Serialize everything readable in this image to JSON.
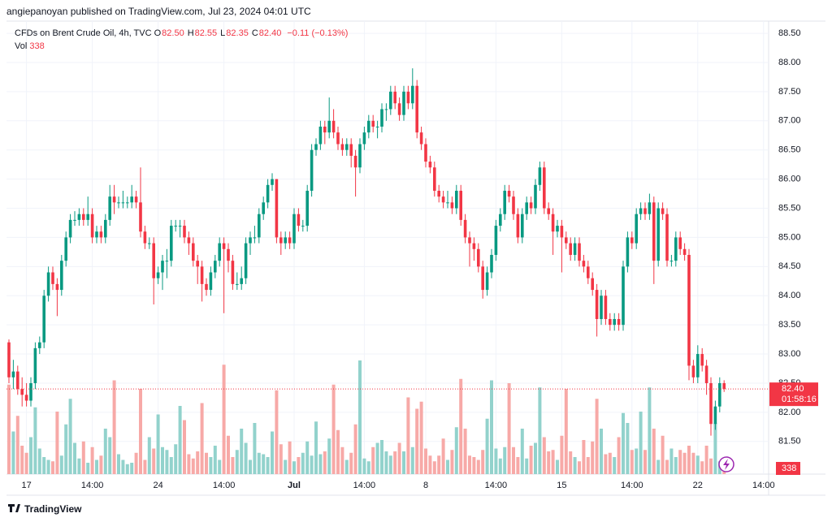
{
  "chart_data": {
    "type": "candlestick",
    "header": "angiepanoyan published on TradingView.com, Jul 23, 2024 04:01 UTC",
    "legend": {
      "symbol": "CFDs on Brent Crude Oil, 4h, TVC",
      "fields": [
        "O",
        "H",
        "L",
        "C"
      ],
      "value_labels": [
        "82.50",
        "82.55",
        "82.35",
        "82.40"
      ],
      "change": "−0.11 (−0.13%)",
      "volume_name": "Vol",
      "volume_label": "338"
    },
    "last_price_label": "82.40",
    "countdown": "01:58:16",
    "last_volume_label": "338",
    "brand": "TradingView",
    "up_color": "#089981",
    "down_color": "#f23645",
    "volume_up_color": "#92d2cc",
    "volume_down_color": "#f7a9a7",
    "grid": true,
    "ylim": [
      80.94,
      88.71
    ],
    "yticks": [
      {
        "value": 88.5,
        "label": "88.50"
      },
      {
        "value": 88,
        "label": "88.00"
      },
      {
        "value": 87.5,
        "label": "87.50"
      },
      {
        "value": 87,
        "label": "87.00"
      },
      {
        "value": 86.5,
        "label": "86.50"
      },
      {
        "value": 86,
        "label": "86.00"
      },
      {
        "value": 85.5,
        "label": "85.50"
      },
      {
        "value": 85,
        "label": "85.00"
      },
      {
        "value": 84.5,
        "label": "84.50"
      },
      {
        "value": 84,
        "label": "84.00"
      },
      {
        "value": 83.5,
        "label": "83.50"
      },
      {
        "value": 83,
        "label": "83.00"
      },
      {
        "value": 82.5,
        "label": "82.50"
      },
      {
        "value": 82,
        "label": "82.00"
      },
      {
        "value": 81.5,
        "label": "81.50"
      }
    ],
    "xticks": [
      {
        "value": 4,
        "label": "17"
      },
      {
        "value": 19,
        "label": "14:00"
      },
      {
        "value": 34,
        "label": "24"
      },
      {
        "value": 49,
        "label": "14:00"
      },
      {
        "value": 65,
        "label": "Jul"
      },
      {
        "value": 81,
        "label": "14:00"
      },
      {
        "value": 95,
        "label": "8"
      },
      {
        "value": 111,
        "label": "14:00"
      },
      {
        "value": 126,
        "label": "15"
      },
      {
        "value": 142,
        "label": "14:00"
      },
      {
        "value": 157,
        "label": "22"
      },
      {
        "value": 172,
        "label": "14:00"
      }
    ],
    "volume_lim": [
      0,
      8000
    ],
    "candles": [
      [
        83.2,
        83.25,
        82.5,
        82.6
      ],
      [
        82.6,
        82.9,
        82.4,
        82.7
      ],
      [
        82.7,
        82.8,
        82.3,
        82.4
      ],
      [
        82.4,
        82.6,
        82.1,
        82.3
      ],
      [
        82.3,
        82.5,
        82.1,
        82.2
      ],
      [
        82.2,
        82.6,
        82.1,
        82.5
      ],
      [
        82.5,
        83.2,
        82.4,
        83.1
      ],
      [
        83.1,
        83.3,
        83.0,
        83.2
      ],
      [
        83.2,
        84.1,
        83.1,
        84.0
      ],
      [
        84.0,
        84.5,
        83.9,
        84.4
      ],
      [
        84.4,
        84.5,
        84.1,
        84.2
      ],
      [
        84.2,
        84.3,
        83.65,
        84.1
      ],
      [
        84.1,
        84.7,
        84.0,
        84.6
      ],
      [
        84.6,
        85.1,
        84.5,
        85.0
      ],
      [
        85.0,
        85.4,
        84.9,
        85.3
      ],
      [
        85.3,
        85.45,
        85.2,
        85.3
      ],
      [
        85.3,
        85.5,
        85.2,
        85.4
      ],
      [
        85.4,
        85.5,
        85.2,
        85.3
      ],
      [
        85.3,
        85.7,
        85.2,
        85.4
      ],
      [
        85.4,
        85.5,
        84.9,
        85.0
      ],
      [
        85.0,
        85.2,
        84.9,
        85.1
      ],
      [
        85.1,
        85.2,
        84.9,
        85.0
      ],
      [
        85.0,
        85.4,
        84.9,
        85.3
      ],
      [
        85.3,
        85.9,
        85.2,
        85.7
      ],
      [
        85.7,
        85.9,
        85.4,
        85.6
      ],
      [
        85.6,
        85.7,
        85.5,
        85.6
      ],
      [
        85.6,
        85.8,
        85.5,
        85.6
      ],
      [
        85.6,
        85.7,
        85.5,
        85.6
      ],
      [
        85.6,
        85.9,
        85.5,
        85.7
      ],
      [
        85.7,
        85.8,
        85.5,
        85.6
      ],
      [
        85.6,
        86.2,
        85.0,
        85.1
      ],
      [
        85.1,
        85.2,
        84.8,
        84.9
      ],
      [
        84.9,
        85.0,
        84.8,
        84.9
      ],
      [
        84.9,
        85.0,
        83.85,
        84.3
      ],
      [
        84.3,
        84.5,
        84.2,
        84.4
      ],
      [
        84.4,
        84.7,
        84.1,
        84.6
      ],
      [
        84.6,
        84.8,
        84.3,
        84.6
      ],
      [
        84.6,
        85.3,
        84.5,
        85.2
      ],
      [
        85.2,
        85.3,
        85.1,
        85.2
      ],
      [
        85.2,
        85.3,
        85.0,
        85.2
      ],
      [
        85.2,
        85.3,
        84.9,
        85.0
      ],
      [
        85.0,
        85.1,
        84.7,
        84.9
      ],
      [
        84.9,
        85.0,
        84.5,
        84.6
      ],
      [
        84.6,
        84.7,
        84.2,
        84.5
      ],
      [
        84.5,
        84.6,
        83.9,
        84.2
      ],
      [
        84.2,
        84.3,
        84.0,
        84.1
      ],
      [
        84.1,
        84.5,
        84.0,
        84.4
      ],
      [
        84.4,
        84.7,
        84.3,
        84.6
      ],
      [
        84.6,
        85.0,
        84.5,
        84.9
      ],
      [
        84.9,
        85.0,
        83.7,
        84.8
      ],
      [
        84.8,
        84.9,
        84.4,
        84.6
      ],
      [
        84.6,
        84.7,
        84.1,
        84.2
      ],
      [
        84.2,
        84.4,
        84.1,
        84.2
      ],
      [
        84.2,
        84.5,
        84.1,
        84.3
      ],
      [
        84.3,
        85.0,
        84.2,
        84.9
      ],
      [
        84.9,
        85.1,
        84.7,
        85.0
      ],
      [
        85.0,
        85.2,
        84.9,
        85.0
      ],
      [
        85.0,
        85.5,
        84.9,
        85.4
      ],
      [
        85.4,
        85.7,
        85.3,
        85.6
      ],
      [
        85.6,
        86.0,
        85.5,
        85.9
      ],
      [
        85.9,
        86.1,
        85.8,
        86.0
      ],
      [
        86.0,
        86.0,
        84.9,
        85.0
      ],
      [
        85.0,
        85.1,
        84.7,
        84.9
      ],
      [
        84.9,
        85.1,
        84.8,
        85.0
      ],
      [
        85.0,
        85.1,
        84.8,
        84.9
      ],
      [
        84.9,
        85.5,
        84.8,
        85.4
      ],
      [
        85.4,
        85.5,
        85.1,
        85.2
      ],
      [
        85.2,
        85.3,
        85.1,
        85.2
      ],
      [
        85.2,
        85.9,
        85.1,
        85.8
      ],
      [
        85.8,
        86.6,
        85.7,
        86.5
      ],
      [
        86.5,
        86.7,
        86.4,
        86.6
      ],
      [
        86.6,
        87.0,
        86.5,
        86.9
      ],
      [
        86.9,
        87.0,
        86.6,
        86.8
      ],
      [
        86.8,
        87.4,
        86.7,
        87.0
      ],
      [
        87.0,
        87.2,
        86.7,
        86.8
      ],
      [
        86.8,
        86.9,
        86.5,
        86.6
      ],
      [
        86.6,
        86.7,
        86.4,
        86.5
      ],
      [
        86.5,
        86.7,
        86.4,
        86.6
      ],
      [
        86.6,
        86.7,
        86.2,
        86.4
      ],
      [
        86.4,
        86.5,
        85.7,
        86.2
      ],
      [
        86.2,
        86.7,
        86.1,
        86.6
      ],
      [
        86.6,
        86.9,
        86.5,
        86.8
      ],
      [
        86.8,
        87.1,
        86.7,
        87.0
      ],
      [
        87.0,
        87.1,
        86.8,
        86.9
      ],
      [
        86.9,
        87.0,
        86.7,
        86.9
      ],
      [
        86.9,
        87.3,
        86.8,
        87.2
      ],
      [
        87.2,
        87.3,
        87.0,
        87.2
      ],
      [
        87.2,
        87.6,
        87.1,
        87.5
      ],
      [
        87.5,
        87.6,
        87.2,
        87.3
      ],
      [
        87.3,
        87.4,
        87.0,
        87.1
      ],
      [
        87.1,
        87.6,
        87.0,
        87.5
      ],
      [
        87.5,
        87.6,
        87.2,
        87.3
      ],
      [
        87.3,
        87.9,
        87.2,
        87.6
      ],
      [
        87.6,
        87.7,
        86.7,
        86.8
      ],
      [
        86.8,
        86.9,
        86.5,
        86.6
      ],
      [
        86.6,
        86.7,
        86.2,
        86.3
      ],
      [
        86.3,
        86.4,
        86.1,
        86.2
      ],
      [
        86.2,
        86.3,
        85.7,
        85.8
      ],
      [
        85.8,
        85.9,
        85.6,
        85.7
      ],
      [
        85.7,
        85.8,
        85.5,
        85.6
      ],
      [
        85.6,
        85.8,
        85.5,
        85.6
      ],
      [
        85.6,
        85.7,
        85.4,
        85.5
      ],
      [
        85.5,
        85.9,
        85.4,
        85.8
      ],
      [
        85.8,
        85.9,
        85.2,
        85.3
      ],
      [
        85.3,
        85.4,
        84.9,
        85.0
      ],
      [
        85.0,
        85.1,
        84.5,
        84.9
      ],
      [
        84.9,
        85.0,
        84.6,
        84.8
      ],
      [
        84.8,
        84.9,
        84.4,
        84.5
      ],
      [
        84.5,
        84.6,
        83.95,
        84.1
      ],
      [
        84.1,
        84.5,
        84.0,
        84.4
      ],
      [
        84.4,
        84.8,
        84.3,
        84.7
      ],
      [
        84.7,
        85.3,
        84.6,
        85.2
      ],
      [
        85.2,
        85.5,
        85.1,
        85.4
      ],
      [
        85.4,
        85.9,
        85.3,
        85.8
      ],
      [
        85.8,
        85.9,
        85.6,
        85.7
      ],
      [
        85.7,
        85.8,
        85.3,
        85.4
      ],
      [
        85.4,
        85.5,
        84.9,
        85.0
      ],
      [
        85.0,
        85.5,
        84.9,
        85.4
      ],
      [
        85.4,
        85.7,
        85.3,
        85.6
      ],
      [
        85.6,
        85.7,
        85.4,
        85.5
      ],
      [
        85.5,
        86.0,
        85.4,
        85.9
      ],
      [
        85.9,
        86.3,
        85.8,
        86.2
      ],
      [
        86.2,
        86.3,
        85.4,
        85.5
      ],
      [
        85.5,
        85.6,
        85.3,
        85.4
      ],
      [
        85.4,
        85.5,
        84.7,
        85.1
      ],
      [
        85.1,
        85.3,
        85.0,
        85.2
      ],
      [
        85.2,
        85.3,
        84.4,
        85.0
      ],
      [
        85.0,
        85.1,
        84.8,
        84.9
      ],
      [
        84.9,
        85.0,
        84.6,
        84.7
      ],
      [
        84.7,
        85.0,
        84.6,
        84.9
      ],
      [
        84.9,
        85.0,
        84.5,
        84.6
      ],
      [
        84.6,
        84.7,
        84.4,
        84.5
      ],
      [
        84.5,
        84.6,
        84.2,
        84.3
      ],
      [
        84.3,
        84.4,
        84.0,
        84.1
      ],
      [
        84.1,
        84.2,
        83.3,
        83.6
      ],
      [
        83.6,
        84.1,
        83.5,
        84.0
      ],
      [
        84.0,
        84.1,
        83.5,
        83.6
      ],
      [
        83.6,
        83.7,
        83.4,
        83.5
      ],
      [
        83.5,
        83.7,
        83.4,
        83.6
      ],
      [
        83.6,
        83.7,
        83.4,
        83.5
      ],
      [
        83.5,
        84.6,
        83.4,
        84.5
      ],
      [
        84.5,
        85.1,
        84.4,
        85.0
      ],
      [
        85.0,
        85.1,
        84.8,
        84.9
      ],
      [
        84.9,
        85.5,
        84.8,
        85.4
      ],
      [
        85.4,
        85.6,
        85.3,
        85.5
      ],
      [
        85.5,
        85.6,
        85.3,
        85.4
      ],
      [
        85.4,
        85.75,
        85.3,
        85.6
      ],
      [
        85.6,
        85.7,
        84.2,
        84.6
      ],
      [
        84.6,
        85.6,
        84.5,
        85.5
      ],
      [
        85.5,
        85.6,
        85.3,
        85.4
      ],
      [
        85.4,
        85.5,
        84.5,
        84.6
      ],
      [
        84.6,
        84.7,
        84.5,
        84.6
      ],
      [
        84.6,
        85.1,
        84.5,
        85.0
      ],
      [
        85.0,
        85.1,
        84.7,
        84.8
      ],
      [
        84.8,
        84.9,
        84.6,
        84.7
      ],
      [
        84.7,
        84.8,
        82.55,
        82.8
      ],
      [
        82.8,
        82.9,
        82.5,
        82.6
      ],
      [
        82.6,
        83.15,
        82.5,
        83.0
      ],
      [
        83.0,
        83.1,
        82.7,
        82.8
      ],
      [
        82.8,
        82.9,
        82.3,
        82.5
      ],
      [
        82.5,
        82.6,
        81.6,
        81.8
      ],
      [
        81.8,
        82.2,
        81.7,
        82.1
      ],
      [
        82.1,
        82.6,
        82.0,
        82.5
      ],
      [
        82.5,
        82.55,
        82.35,
        82.4
      ]
    ],
    "volumes": [
      6300,
      3000,
      4100,
      2000,
      1500,
      2600,
      4700,
      1800,
      1200,
      1000,
      900,
      4400,
      1300,
      3500,
      5300,
      2200,
      1100,
      2300,
      800,
      1900,
      1000,
      1300,
      3200,
      2600,
      6600,
      1400,
      1000,
      700,
      800,
      1500,
      6000,
      1000,
      2600,
      1800,
      4200,
      1900,
      1700,
      1200,
      2100,
      4800,
      3800,
      1400,
      1100,
      1600,
      5000,
      1500,
      1200,
      2000,
      1000,
      7700,
      2700,
      1200,
      1700,
      3200,
      2200,
      1000,
      3600,
      1500,
      1400,
      1200,
      3000,
      5900,
      2100,
      1000,
      2300,
      900,
      1200,
      1500,
      2300,
      1300,
      3700,
      1400,
      1600,
      2500,
      6300,
      3100,
      1900,
      1000,
      1500,
      3500,
      8000,
      1100,
      900,
      1900,
      2200,
      2400,
      1600,
      1300,
      1600,
      2200,
      1600,
      5400,
      1900,
      4600,
      5100,
      1800,
      1300,
      900,
      1300,
      2500,
      1000,
      1700,
      3300,
      6700,
      3200,
      1300,
      1200,
      1000,
      1700,
      3900,
      6600,
      1800,
      1100,
      1900,
      6400,
      1900,
      1200,
      3200,
      1100,
      2000,
      2200,
      6100,
      2600,
      1600,
      1700,
      1000,
      2700,
      6000,
      1600,
      1200,
      900,
      2400,
      1200,
      2300,
      5300,
      3200,
      1400,
      1500,
      1200,
      2600,
      4300,
      3600,
      1700,
      1800,
      4400,
      1700,
      6100,
      3200,
      1000,
      2700,
      1000,
      1800,
      1200,
      1700,
      1500,
      2000,
      1500,
      1300,
      900,
      2000,
      1100,
      3600,
      900,
      338
    ]
  }
}
